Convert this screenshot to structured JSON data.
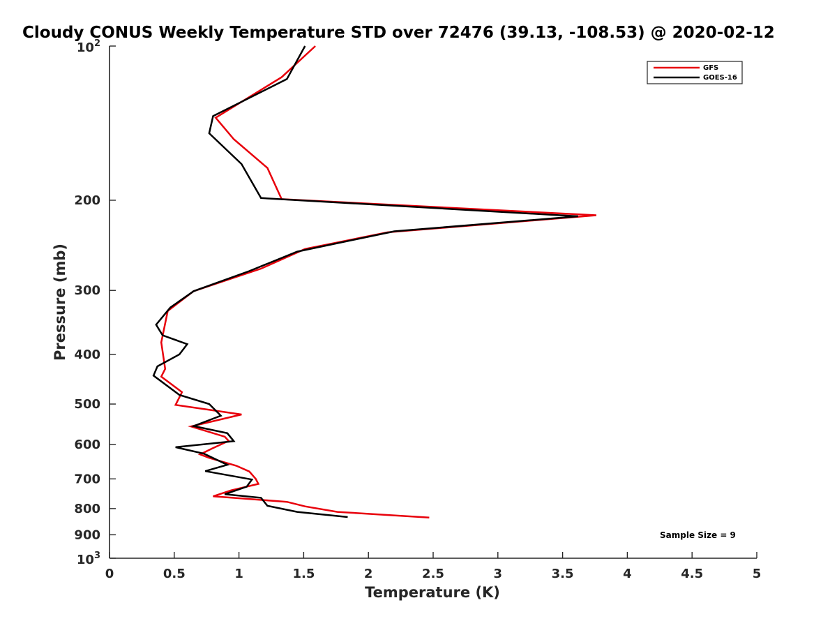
{
  "chart_data": {
    "type": "line",
    "title": "Cloudy CONUS Weekly Temperature STD over 72476 (39.13, -108.53) @ 2020-02-12",
    "xlabel": "Temperature (K)",
    "ylabel": "Pressure (mb)",
    "xlim": [
      0,
      5
    ],
    "ylim": [
      100,
      1000
    ],
    "yscale": "log",
    "y_reversed": true,
    "xticks": [
      0,
      0.5,
      1,
      1.5,
      2,
      2.5,
      3,
      3.5,
      4,
      4.5,
      5
    ],
    "xtick_labels": [
      "0",
      "0.5",
      "1",
      "1.5",
      "2",
      "2.5",
      "3",
      "3.5",
      "4",
      "4.5",
      "5"
    ],
    "yticks": [
      200,
      300,
      400,
      500,
      600,
      700,
      800,
      900
    ],
    "ytick_labels": [
      "200",
      "300",
      "400",
      "500",
      "600",
      "700",
      "800",
      "900"
    ],
    "ytick_exp": [
      {
        "value": 100,
        "base": "10",
        "exp": "2"
      },
      {
        "value": 1000,
        "base": "10",
        "exp": "3"
      }
    ],
    "grid": false,
    "legend": "top-right",
    "annotation": "Sample Size = 9",
    "series": [
      {
        "name": "GFS",
        "color": "#e8000b",
        "points": [
          [
            1.59,
            100
          ],
          [
            1.33,
            115
          ],
          [
            0.82,
            138
          ],
          [
            0.96,
            152
          ],
          [
            1.22,
            173
          ],
          [
            1.33,
            199
          ],
          [
            3.76,
            214
          ],
          [
            2.15,
            231
          ],
          [
            1.51,
            249
          ],
          [
            1.17,
            272
          ],
          [
            0.65,
            301
          ],
          [
            0.45,
            329
          ],
          [
            0.4,
            379
          ],
          [
            0.43,
            427
          ],
          [
            0.4,
            442
          ],
          [
            0.56,
            474
          ],
          [
            0.51,
            502
          ],
          [
            1.02,
            524
          ],
          [
            0.63,
            553
          ],
          [
            0.89,
            579
          ],
          [
            0.92,
            590
          ],
          [
            0.79,
            611
          ],
          [
            0.7,
            627
          ],
          [
            0.77,
            637
          ],
          [
            0.98,
            660
          ],
          [
            1.08,
            677
          ],
          [
            1.13,
            700
          ],
          [
            1.15,
            716
          ],
          [
            0.94,
            737
          ],
          [
            0.8,
            757
          ],
          [
            1.37,
            776
          ],
          [
            1.51,
            792
          ],
          [
            1.76,
            812
          ],
          [
            2.47,
            833
          ]
        ]
      },
      {
        "name": "GOES-16",
        "color": "#000000",
        "points": [
          [
            1.51,
            100
          ],
          [
            1.37,
            116
          ],
          [
            0.8,
            137
          ],
          [
            0.77,
            148
          ],
          [
            1.02,
            170
          ],
          [
            1.17,
            198
          ],
          [
            3.62,
            215
          ],
          [
            2.2,
            230
          ],
          [
            1.45,
            252
          ],
          [
            1.08,
            275
          ],
          [
            0.65,
            301
          ],
          [
            0.47,
            324
          ],
          [
            0.36,
            350
          ],
          [
            0.41,
            367
          ],
          [
            0.6,
            382
          ],
          [
            0.54,
            400
          ],
          [
            0.37,
            422
          ],
          [
            0.34,
            440
          ],
          [
            0.54,
            480
          ],
          [
            0.77,
            500
          ],
          [
            0.86,
            527
          ],
          [
            0.65,
            552
          ],
          [
            0.91,
            570
          ],
          [
            0.96,
            591
          ],
          [
            0.51,
            607
          ],
          [
            0.73,
            625
          ],
          [
            0.91,
            657
          ],
          [
            0.74,
            676
          ],
          [
            1.1,
            702
          ],
          [
            1.06,
            725
          ],
          [
            0.89,
            750
          ],
          [
            1.17,
            762
          ],
          [
            1.22,
            790
          ],
          [
            1.45,
            812
          ],
          [
            1.84,
            831
          ]
        ]
      }
    ]
  }
}
